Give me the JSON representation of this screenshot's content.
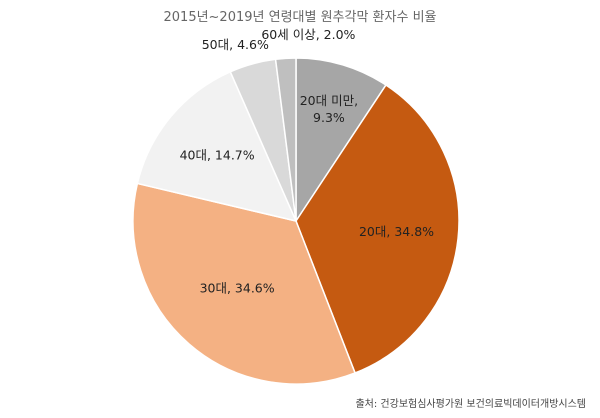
{
  "chart_data": {
    "type": "pie",
    "title": "2015년~2019년 연령대별 원추각막 환자수 비율",
    "categories": [
      "20대 미만",
      "20대",
      "30대",
      "40대",
      "50대",
      "60세 이상"
    ],
    "values": [
      9.3,
      34.8,
      34.6,
      14.7,
      4.6,
      2.0
    ],
    "unit": "%",
    "colors": [
      "#a6a6a6",
      "#c55a11",
      "#f4b183",
      "#f2f2f2",
      "#d9d9d9",
      "#bfbfbf"
    ],
    "labels": [
      [
        "20대 미만,",
        "9.3%"
      ],
      [
        "20대, 34.8%"
      ],
      [
        "30대, 34.6%"
      ],
      [
        "40대, 14.7%"
      ],
      [
        "50대, 4.6%"
      ],
      [
        "60세 이상, 2.0%"
      ]
    ],
    "legend": "none",
    "source": "출처: 건강보험심사평가원 보건의료빅데이터개방시스템"
  }
}
